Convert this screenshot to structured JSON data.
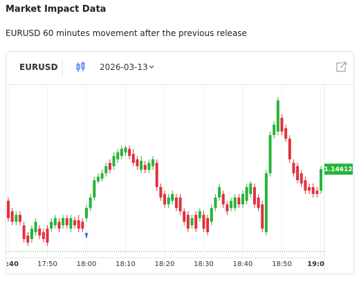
{
  "header": {
    "title": "Market Impact Data",
    "subtitle": "EURUSD 60 minutes movement after the previous release"
  },
  "widget": {
    "symbol": "EURUSD",
    "date": "2026-03-13"
  },
  "chart_data": {
    "type": "candlestick",
    "categories": [
      ":40",
      null,
      null,
      null,
      null,
      null,
      null,
      null,
      null,
      null,
      "17:50",
      null,
      null,
      null,
      null,
      null,
      null,
      null,
      null,
      null,
      "18:00",
      null,
      null,
      null,
      null,
      null,
      null,
      null,
      null,
      null,
      "18:10",
      null,
      null,
      null,
      null,
      null,
      null,
      null,
      null,
      null,
      "18:20",
      null,
      null,
      null,
      null,
      null,
      null,
      null,
      null,
      null,
      "18:30",
      null,
      null,
      null,
      null,
      null,
      null,
      null,
      null,
      null,
      "18:40",
      null,
      null,
      null,
      null,
      null,
      null,
      null,
      null,
      null,
      "18:50",
      null,
      null,
      null,
      null,
      null,
      null,
      null,
      null,
      null,
      "19:0"
    ],
    "open": [
      1.14506,
      1.14471,
      1.14436,
      1.14459,
      1.14424,
      1.1439,
      1.14378,
      1.14401,
      1.14413,
      1.14401,
      1.14413,
      1.14413,
      1.14424,
      1.14436,
      1.14424,
      1.14448,
      1.14413,
      1.14441,
      1.14441,
      1.14436,
      1.14448,
      1.14482,
      1.14517,
      1.14571,
      1.1458,
      1.14598,
      1.14633,
      1.14622,
      1.14645,
      1.14656,
      1.14668,
      1.1468,
      1.14663,
      1.14645,
      1.1461,
      1.14626,
      1.1461,
      1.14622,
      1.14633,
      1.14552,
      1.14529,
      1.14494,
      1.14506,
      1.14517,
      1.14517,
      1.14471,
      1.14459,
      1.14424,
      1.14459,
      1.14448,
      1.14459,
      1.14448,
      1.14436,
      1.14482,
      1.14517,
      1.14529,
      1.14494,
      1.14482,
      1.14482,
      1.14517,
      1.14494,
      1.14506,
      1.14529,
      1.14552,
      1.14517,
      1.14494,
      1.14401,
      1.14598,
      1.14726,
      1.14738,
      1.14784,
      1.14749,
      1.14714,
      1.14633,
      1.14622,
      1.14598,
      1.14575,
      1.14552,
      1.14552,
      1.1454,
      1.1454
    ],
    "high": [
      1.14517,
      1.14482,
      1.14471,
      1.14471,
      1.14436,
      1.14401,
      1.14424,
      1.14448,
      1.14424,
      1.14413,
      1.14424,
      1.14448,
      1.14459,
      1.14448,
      1.14459,
      1.14459,
      1.14459,
      1.14452,
      1.14459,
      1.14448,
      1.14494,
      1.14529,
      1.14587,
      1.14598,
      1.1461,
      1.14633,
      1.14645,
      1.14668,
      1.1468,
      1.14691,
      1.14691,
      1.14691,
      1.1468,
      1.14656,
      1.14656,
      1.1464,
      1.14645,
      1.14656,
      1.14645,
      1.14564,
      1.1454,
      1.14529,
      1.1454,
      1.14529,
      1.14529,
      1.14482,
      1.14471,
      1.14459,
      1.14471,
      1.14482,
      1.14471,
      1.14459,
      1.14494,
      1.14529,
      1.14564,
      1.1454,
      1.14506,
      1.14517,
      1.14529,
      1.14529,
      1.1454,
      1.14564,
      1.14571,
      1.14564,
      1.14529,
      1.14506,
      1.1461,
      1.14738,
      1.14772,
      1.14854,
      1.14796,
      1.14761,
      1.14726,
      1.14645,
      1.14633,
      1.1461,
      1.14587,
      1.14564,
      1.14564,
      1.14552,
      1.14622
    ],
    "low": [
      1.14436,
      1.14424,
      1.14424,
      1.14424,
      1.14366,
      1.14355,
      1.14366,
      1.1439,
      1.14378,
      1.14366,
      1.14355,
      1.14401,
      1.14413,
      1.14401,
      1.14413,
      1.14413,
      1.14401,
      1.14413,
      1.14401,
      1.14401,
      1.14436,
      1.14471,
      1.14506,
      1.14564,
      1.14571,
      1.14587,
      1.14598,
      1.1461,
      1.14633,
      1.14645,
      1.14656,
      1.14645,
      1.14622,
      1.1461,
      1.14598,
      1.14598,
      1.14598,
      1.1461,
      1.1454,
      1.14506,
      1.14482,
      1.14482,
      1.14494,
      1.14471,
      1.14459,
      1.14424,
      1.14401,
      1.14413,
      1.14401,
      1.14436,
      1.14401,
      1.1439,
      1.14424,
      1.14471,
      1.14506,
      1.14482,
      1.14459,
      1.14471,
      1.14471,
      1.14482,
      1.14482,
      1.14494,
      1.14517,
      1.14482,
      1.14471,
      1.14401,
      1.1439,
      1.14587,
      1.14714,
      1.14726,
      1.14726,
      1.14703,
      1.14633,
      1.14587,
      1.14564,
      1.14552,
      1.14529,
      1.14529,
      1.14517,
      1.14517,
      1.14529
    ],
    "close": [
      1.14448,
      1.14436,
      1.14459,
      1.14436,
      1.14378,
      1.14366,
      1.14413,
      1.14436,
      1.1439,
      1.14378,
      1.14366,
      1.14436,
      1.14448,
      1.14413,
      1.14448,
      1.14424,
      1.14448,
      1.14424,
      1.14413,
      1.14413,
      1.14482,
      1.14517,
      1.14575,
      1.14587,
      1.14598,
      1.14622,
      1.1461,
      1.14656,
      1.14668,
      1.1468,
      1.14684,
      1.14656,
      1.14633,
      1.14622,
      1.1464,
      1.1461,
      1.14633,
      1.14645,
      1.14552,
      1.14517,
      1.14494,
      1.14517,
      1.14529,
      1.14482,
      1.14471,
      1.14436,
      1.14413,
      1.14448,
      1.14413,
      1.14471,
      1.14413,
      1.14401,
      1.14482,
      1.14517,
      1.14552,
      1.14494,
      1.14471,
      1.14506,
      1.14517,
      1.14494,
      1.14529,
      1.14552,
      1.14564,
      1.14494,
      1.14482,
      1.14413,
      1.14598,
      1.14726,
      1.14761,
      1.14842,
      1.14738,
      1.14714,
      1.14645,
      1.14598,
      1.14575,
      1.14564,
      1.1454,
      1.1454,
      1.14529,
      1.14529,
      1.14612
    ],
    "up_color": "#26b43a",
    "down_color": "#e0313c",
    "ylim": [
      1.1432,
      1.149
    ],
    "grid": true
  }
}
